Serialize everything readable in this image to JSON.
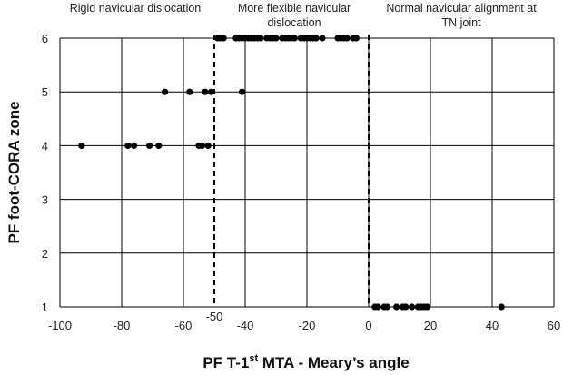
{
  "chart_data": {
    "type": "scatter",
    "title": "",
    "xlabel": {
      "main": "PF T-1",
      "sup": "st",
      "rest": " MTA - Meary’s angle"
    },
    "ylabel": "PF foot-CORA zone",
    "xlim": [
      -100,
      60
    ],
    "ylim": [
      1,
      6
    ],
    "xticks": [
      -100,
      -80,
      -60,
      -40,
      -20,
      0,
      20,
      40,
      60
    ],
    "yticks": [
      1,
      2,
      3,
      4,
      5,
      6
    ],
    "grid": true,
    "reference_lines": [
      {
        "x": -50,
        "style": "dashed",
        "label": "-50"
      },
      {
        "x": 0,
        "style": "dashed",
        "label": ""
      }
    ],
    "regions": [
      {
        "lines": [
          "Rigid navicular dislocation"
        ]
      },
      {
        "lines": [
          "More flexible navicular",
          "dislocation"
        ]
      },
      {
        "lines": [
          "Normal navicular alignment at",
          "TN joint"
        ]
      }
    ],
    "points": [
      {
        "x": -93,
        "y": 4
      },
      {
        "x": -78,
        "y": 4
      },
      {
        "x": -76,
        "y": 4
      },
      {
        "x": -71,
        "y": 4
      },
      {
        "x": -68,
        "y": 4
      },
      {
        "x": -55,
        "y": 4
      },
      {
        "x": -54,
        "y": 4
      },
      {
        "x": -52,
        "y": 4
      },
      {
        "x": -66,
        "y": 5
      },
      {
        "x": -58,
        "y": 5
      },
      {
        "x": -53,
        "y": 5
      },
      {
        "x": -51,
        "y": 5
      },
      {
        "x": -41,
        "y": 5
      },
      {
        "x": -49,
        "y": 6
      },
      {
        "x": -48,
        "y": 6
      },
      {
        "x": -47,
        "y": 6
      },
      {
        "x": -43,
        "y": 6
      },
      {
        "x": -42,
        "y": 6
      },
      {
        "x": -41,
        "y": 6
      },
      {
        "x": -40,
        "y": 6
      },
      {
        "x": -39,
        "y": 6
      },
      {
        "x": -38,
        "y": 6
      },
      {
        "x": -37,
        "y": 6
      },
      {
        "x": -36,
        "y": 6
      },
      {
        "x": -35,
        "y": 6
      },
      {
        "x": -33,
        "y": 6
      },
      {
        "x": -32,
        "y": 6
      },
      {
        "x": -31,
        "y": 6
      },
      {
        "x": -30,
        "y": 6
      },
      {
        "x": -28,
        "y": 6
      },
      {
        "x": -27,
        "y": 6
      },
      {
        "x": -26,
        "y": 6
      },
      {
        "x": -25,
        "y": 6
      },
      {
        "x": -24,
        "y": 6
      },
      {
        "x": -22,
        "y": 6
      },
      {
        "x": -21,
        "y": 6
      },
      {
        "x": -20,
        "y": 6
      },
      {
        "x": -19,
        "y": 6
      },
      {
        "x": -18,
        "y": 6
      },
      {
        "x": -17,
        "y": 6
      },
      {
        "x": -15,
        "y": 6
      },
      {
        "x": -10,
        "y": 6
      },
      {
        "x": -9,
        "y": 6
      },
      {
        "x": -8,
        "y": 6
      },
      {
        "x": -7,
        "y": 6
      },
      {
        "x": -5,
        "y": 6
      },
      {
        "x": -4,
        "y": 6
      },
      {
        "x": 2,
        "y": 1
      },
      {
        "x": 3,
        "y": 1
      },
      {
        "x": 5,
        "y": 1
      },
      {
        "x": 6,
        "y": 1
      },
      {
        "x": 9,
        "y": 1
      },
      {
        "x": 11,
        "y": 1
      },
      {
        "x": 12,
        "y": 1
      },
      {
        "x": 14,
        "y": 1
      },
      {
        "x": 16,
        "y": 1
      },
      {
        "x": 17,
        "y": 1
      },
      {
        "x": 18,
        "y": 1
      },
      {
        "x": 19,
        "y": 1
      },
      {
        "x": 43,
        "y": 1
      }
    ]
  }
}
